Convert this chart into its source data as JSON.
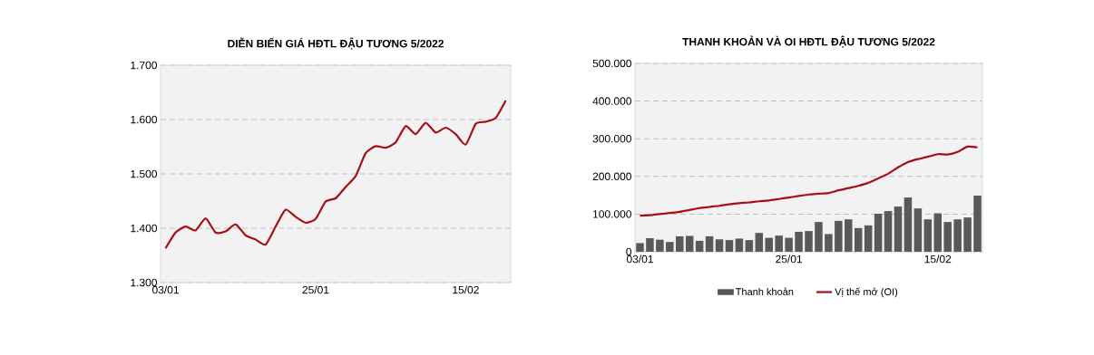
{
  "chart_data": [
    {
      "type": "line",
      "title": "DIỄN BIẾN GIÁ HĐTL ĐẬU TƯƠNG 5/2022",
      "categories": [
        "03/01",
        null,
        null,
        null,
        null,
        null,
        null,
        null,
        null,
        null,
        null,
        null,
        null,
        null,
        null,
        "25/01",
        null,
        null,
        null,
        null,
        null,
        null,
        null,
        null,
        null,
        null,
        null,
        null,
        null,
        null,
        "15/02",
        null,
        null,
        null,
        null
      ],
      "series": [
        {
          "color": "#a50f15",
          "values": [
            1363,
            1392,
            1403,
            1396,
            1418,
            1392,
            1394,
            1407,
            1387,
            1379,
            1370,
            1403,
            1434,
            1421,
            1410,
            1417,
            1449,
            1455,
            1476,
            1496,
            1538,
            1551,
            1548,
            1558,
            1588,
            1573,
            1594,
            1576,
            1585,
            1573,
            1554,
            1592,
            1596,
            1603,
            1635
          ]
        }
      ],
      "ylim": [
        1300,
        1700
      ],
      "yticks": [
        {
          "value": 1300,
          "label": "1.300"
        },
        {
          "value": 1400,
          "label": "1.400"
        },
        {
          "value": 1500,
          "label": "1.500"
        },
        {
          "value": 1600,
          "label": "1.600"
        },
        {
          "value": 1700,
          "label": "1.700"
        }
      ],
      "grid": "y"
    },
    {
      "type": "bar",
      "title": "THANH KHOẢN VÀ OI HĐTL ĐẬU TƯƠNG 5/2022",
      "categories": [
        "03/01",
        null,
        null,
        null,
        null,
        null,
        null,
        null,
        null,
        null,
        null,
        null,
        null,
        null,
        null,
        "25/01",
        null,
        null,
        null,
        null,
        null,
        null,
        null,
        null,
        null,
        null,
        null,
        null,
        null,
        null,
        "15/02",
        null,
        null,
        null,
        null
      ],
      "series": [
        {
          "name": "Thanh khoản",
          "type": "bar",
          "color": "#595959",
          "values": [
            23000,
            36000,
            32000,
            26000,
            41000,
            42000,
            29000,
            41000,
            33000,
            31000,
            35000,
            31000,
            50000,
            37000,
            43000,
            37000,
            53000,
            55000,
            79000,
            47000,
            82000,
            86000,
            63000,
            70000,
            101000,
            108000,
            120000,
            144000,
            115000,
            86000,
            102000,
            79000,
            86000,
            91000,
            149000
          ]
        },
        {
          "name": "Vị thế mở (OI)",
          "type": "line",
          "color": "#a50f15",
          "values": [
            96000,
            97000,
            100000,
            103000,
            106000,
            111000,
            116000,
            119000,
            122000,
            126000,
            129000,
            131000,
            134000,
            136000,
            140000,
            144000,
            148000,
            152000,
            154000,
            156000,
            163000,
            169000,
            175000,
            183000,
            195000,
            207000,
            224000,
            238000,
            246000,
            252000,
            259000,
            258000,
            265000,
            279000,
            277000
          ]
        }
      ],
      "ylim": [
        0,
        500000
      ],
      "yticks": [
        0,
        {
          "value": 100000,
          "label": "100.000"
        },
        {
          "value": 200000,
          "label": "200.000"
        },
        {
          "value": 300000,
          "label": "300.000"
        },
        {
          "value": 400000,
          "label": "400.000"
        },
        {
          "value": 500000,
          "label": "500.000"
        }
      ],
      "grid": "y",
      "legend": "bottom"
    }
  ]
}
